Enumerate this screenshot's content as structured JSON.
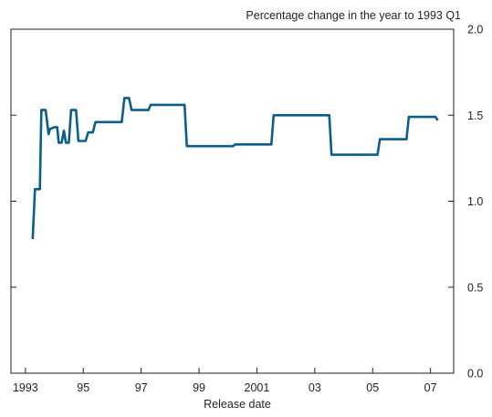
{
  "chart_data": {
    "type": "line",
    "title": "",
    "units_label": "Percentage change in the year to 1993 Q1",
    "xlabel": "Release date",
    "ylabel": "",
    "xlim": [
      1992.5,
      2007.8
    ],
    "ylim": [
      0.0,
      2.0
    ],
    "x_ticks": [
      {
        "value": 1993,
        "label": "1993"
      },
      {
        "value": 1995,
        "label": "95"
      },
      {
        "value": 1997,
        "label": "97"
      },
      {
        "value": 1999,
        "label": "99"
      },
      {
        "value": 2001,
        "label": "2001"
      },
      {
        "value": 2003,
        "label": "03"
      },
      {
        "value": 2005,
        "label": "05"
      },
      {
        "value": 2007,
        "label": "07"
      }
    ],
    "y_ticks": [
      {
        "value": 0.0,
        "label": "0.0"
      },
      {
        "value": 0.5,
        "label": "0.5"
      },
      {
        "value": 1.0,
        "label": "1.0"
      },
      {
        "value": 1.5,
        "label": "1.5"
      },
      {
        "value": 2.0,
        "label": "2.0"
      }
    ],
    "grid": false,
    "y_axis_side": "right",
    "series": [
      {
        "color": "#0b5d8c",
        "points": [
          [
            1993.25,
            0.78
          ],
          [
            1993.33,
            1.07
          ],
          [
            1993.5,
            1.07
          ],
          [
            1993.55,
            1.53
          ],
          [
            1993.7,
            1.53
          ],
          [
            1993.8,
            1.39
          ],
          [
            1993.85,
            1.42
          ],
          [
            1994.0,
            1.43
          ],
          [
            1994.1,
            1.43
          ],
          [
            1994.15,
            1.34
          ],
          [
            1994.25,
            1.34
          ],
          [
            1994.33,
            1.41
          ],
          [
            1994.4,
            1.34
          ],
          [
            1994.5,
            1.34
          ],
          [
            1994.58,
            1.53
          ],
          [
            1994.75,
            1.53
          ],
          [
            1994.83,
            1.35
          ],
          [
            1995.08,
            1.35
          ],
          [
            1995.17,
            1.4
          ],
          [
            1995.33,
            1.4
          ],
          [
            1995.42,
            1.46
          ],
          [
            1996.33,
            1.46
          ],
          [
            1996.42,
            1.6
          ],
          [
            1996.58,
            1.6
          ],
          [
            1996.67,
            1.53
          ],
          [
            1997.25,
            1.53
          ],
          [
            1997.33,
            1.56
          ],
          [
            1998.5,
            1.56
          ],
          [
            1998.58,
            1.32
          ],
          [
            2000.17,
            1.32
          ],
          [
            2000.25,
            1.33
          ],
          [
            2001.5,
            1.33
          ],
          [
            2001.58,
            1.5
          ],
          [
            2003.5,
            1.5
          ],
          [
            2003.58,
            1.27
          ],
          [
            2005.17,
            1.27
          ],
          [
            2005.25,
            1.36
          ],
          [
            2006.17,
            1.36
          ],
          [
            2006.25,
            1.49
          ],
          [
            2007.17,
            1.49
          ],
          [
            2007.25,
            1.47
          ]
        ]
      }
    ]
  }
}
